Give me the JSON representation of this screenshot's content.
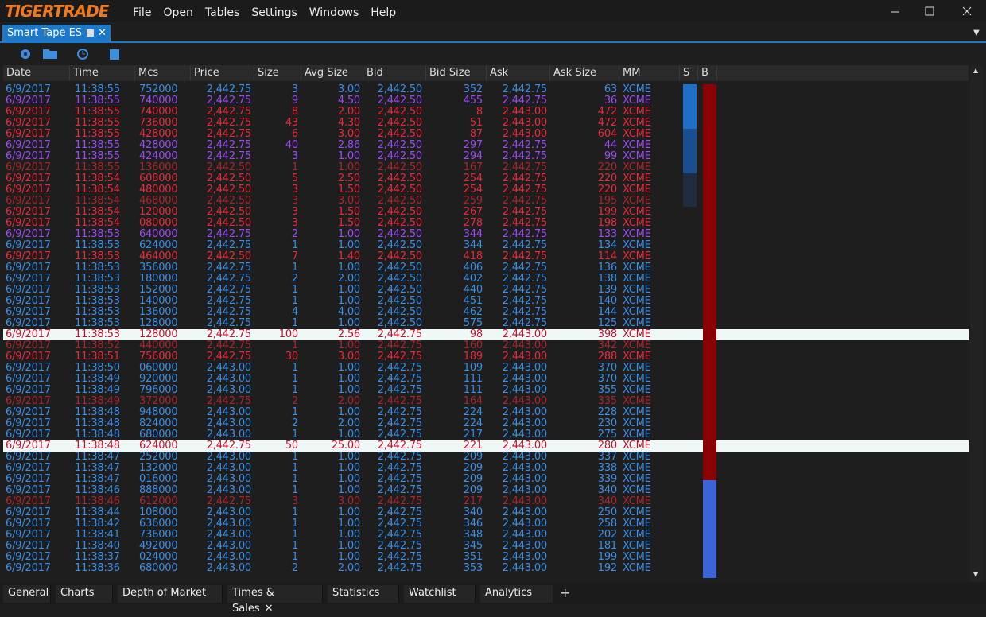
{
  "app": {
    "logo": "TIGERTRADE",
    "menu": [
      "File",
      "Open",
      "Tables",
      "Settings",
      "Windows",
      "Help"
    ],
    "tab": "Smart Tape ES"
  },
  "table": {
    "columns": [
      "Date",
      "Time",
      "Mcs",
      "Price",
      "Size",
      "Avg Size",
      "Bid",
      "Bid Size",
      "Ask",
      "Ask Size",
      "MM",
      "S",
      "B"
    ],
    "rows": [
      [
        "6/9/2017",
        "11:38:55",
        "752000",
        "2,442.75",
        "3",
        "3.00",
        "2,442.50",
        "352",
        "2,442.75",
        "63",
        "XCME"
      ],
      [
        "6/9/2017",
        "11:38:55",
        "740000",
        "2,442.75",
        "9",
        "4.50",
        "2,442.50",
        "455",
        "2,442.75",
        "36",
        "XCME"
      ],
      [
        "6/9/2017",
        "11:38:55",
        "740000",
        "2,442.75",
        "8",
        "2.00",
        "2,442.50",
        "8",
        "2,443.00",
        "472",
        "XCME"
      ],
      [
        "6/9/2017",
        "11:38:55",
        "736000",
        "2,442.75",
        "43",
        "4.30",
        "2,442.50",
        "51",
        "2,443.00",
        "472",
        "XCME"
      ],
      [
        "6/9/2017",
        "11:38:55",
        "428000",
        "2,442.75",
        "6",
        "3.00",
        "2,442.50",
        "87",
        "2,443.00",
        "604",
        "XCME"
      ],
      [
        "6/9/2017",
        "11:38:55",
        "428000",
        "2,442.75",
        "40",
        "2.86",
        "2,442.50",
        "297",
        "2,442.75",
        "44",
        "XCME"
      ],
      [
        "6/9/2017",
        "11:38:55",
        "424000",
        "2,442.75",
        "3",
        "1.00",
        "2,442.50",
        "294",
        "2,442.75",
        "99",
        "XCME"
      ],
      [
        "6/9/2017",
        "11:38:55",
        "136000",
        "2,442.50",
        "1",
        "1.00",
        "2,442.50",
        "167",
        "2,442.75",
        "220",
        "XCME"
      ],
      [
        "6/9/2017",
        "11:38:54",
        "608000",
        "2,442.50",
        "5",
        "2.50",
        "2,442.50",
        "254",
        "2,442.75",
        "220",
        "XCME"
      ],
      [
        "6/9/2017",
        "11:38:54",
        "480000",
        "2,442.50",
        "3",
        "1.50",
        "2,442.50",
        "254",
        "2,442.75",
        "220",
        "XCME"
      ],
      [
        "6/9/2017",
        "11:38:54",
        "468000",
        "2,442.50",
        "3",
        "3.00",
        "2,442.50",
        "259",
        "2,442.75",
        "195",
        "XCME"
      ],
      [
        "6/9/2017",
        "11:38:54",
        "120000",
        "2,442.50",
        "3",
        "1.50",
        "2,442.50",
        "267",
        "2,442.75",
        "199",
        "XCME"
      ],
      [
        "6/9/2017",
        "11:38:54",
        "080000",
        "2,442.50",
        "3",
        "1.50",
        "2,442.50",
        "278",
        "2,442.75",
        "198",
        "XCME"
      ],
      [
        "6/9/2017",
        "11:38:53",
        "640000",
        "2,442.75",
        "2",
        "1.00",
        "2,442.50",
        "344",
        "2,442.75",
        "133",
        "XCME"
      ],
      [
        "6/9/2017",
        "11:38:53",
        "624000",
        "2,442.75",
        "1",
        "1.00",
        "2,442.50",
        "344",
        "2,442.75",
        "134",
        "XCME"
      ],
      [
        "6/9/2017",
        "11:38:53",
        "464000",
        "2,442.50",
        "7",
        "1.40",
        "2,442.50",
        "418",
        "2,442.75",
        "114",
        "XCME"
      ],
      [
        "6/9/2017",
        "11:38:53",
        "356000",
        "2,442.75",
        "1",
        "1.00",
        "2,442.50",
        "406",
        "2,442.75",
        "136",
        "XCME"
      ],
      [
        "6/9/2017",
        "11:38:53",
        "180000",
        "2,442.75",
        "2",
        "2.00",
        "2,442.50",
        "402",
        "2,442.75",
        "138",
        "XCME"
      ],
      [
        "6/9/2017",
        "11:38:53",
        "152000",
        "2,442.75",
        "1",
        "1.00",
        "2,442.50",
        "440",
        "2,442.75",
        "139",
        "XCME"
      ],
      [
        "6/9/2017",
        "11:38:53",
        "140000",
        "2,442.75",
        "1",
        "1.00",
        "2,442.50",
        "451",
        "2,442.75",
        "140",
        "XCME"
      ],
      [
        "6/9/2017",
        "11:38:53",
        "136000",
        "2,442.75",
        "4",
        "4.00",
        "2,442.50",
        "462",
        "2,442.75",
        "144",
        "XCME"
      ],
      [
        "6/9/2017",
        "11:38:53",
        "128000",
        "2,442.75",
        "1",
        "1.00",
        "2,442.50",
        "575",
        "2,442.75",
        "125",
        "XCME"
      ],
      [
        "6/9/2017",
        "11:38:53",
        "128000",
        "2,442.75",
        "100",
        "2.56",
        "2,442.75",
        "98",
        "2,443.00",
        "398",
        "XCME"
      ],
      [
        "6/9/2017",
        "11:38:52",
        "440000",
        "2,442.75",
        "1",
        "1.00",
        "2,442.75",
        "160",
        "2,443.00",
        "342",
        "XCME"
      ],
      [
        "6/9/2017",
        "11:38:51",
        "756000",
        "2,442.75",
        "30",
        "3.00",
        "2,442.75",
        "189",
        "2,443.00",
        "288",
        "XCME"
      ],
      [
        "6/9/2017",
        "11:38:50",
        "060000",
        "2,443.00",
        "1",
        "1.00",
        "2,442.75",
        "109",
        "2,443.00",
        "370",
        "XCME"
      ],
      [
        "6/9/2017",
        "11:38:49",
        "920000",
        "2,443.00",
        "1",
        "1.00",
        "2,442.75",
        "111",
        "2,443.00",
        "370",
        "XCME"
      ],
      [
        "6/9/2017",
        "11:38:49",
        "796000",
        "2,443.00",
        "1",
        "1.00",
        "2,442.75",
        "111",
        "2,443.00",
        "355",
        "XCME"
      ],
      [
        "6/9/2017",
        "11:38:49",
        "372000",
        "2,442.75",
        "2",
        "2.00",
        "2,442.75",
        "164",
        "2,443.00",
        "335",
        "XCME"
      ],
      [
        "6/9/2017",
        "11:38:48",
        "948000",
        "2,443.00",
        "1",
        "1.00",
        "2,442.75",
        "224",
        "2,443.00",
        "228",
        "XCME"
      ],
      [
        "6/9/2017",
        "11:38:48",
        "824000",
        "2,443.00",
        "2",
        "2.00",
        "2,442.75",
        "224",
        "2,443.00",
        "230",
        "XCME"
      ],
      [
        "6/9/2017",
        "11:38:48",
        "680000",
        "2,443.00",
        "1",
        "1.00",
        "2,442.75",
        "217",
        "2,443.00",
        "275",
        "XCME"
      ],
      [
        "6/9/2017",
        "11:38:48",
        "624000",
        "2,442.75",
        "50",
        "25.00",
        "2,442.75",
        "221",
        "2,443.00",
        "280",
        "XCME"
      ],
      [
        "6/9/2017",
        "11:38:47",
        "252000",
        "2,443.00",
        "1",
        "1.00",
        "2,442.75",
        "209",
        "2,443.00",
        "337",
        "XCME"
      ],
      [
        "6/9/2017",
        "11:38:47",
        "132000",
        "2,443.00",
        "1",
        "1.00",
        "2,442.75",
        "209",
        "2,443.00",
        "338",
        "XCME"
      ],
      [
        "6/9/2017",
        "11:38:47",
        "016000",
        "2,443.00",
        "1",
        "1.00",
        "2,442.75",
        "209",
        "2,443.00",
        "339",
        "XCME"
      ],
      [
        "6/9/2017",
        "11:38:46",
        "888000",
        "2,443.00",
        "1",
        "1.00",
        "2,442.75",
        "209",
        "2,443.00",
        "340",
        "XCME"
      ],
      [
        "6/9/2017",
        "11:38:46",
        "612000",
        "2,442.75",
        "3",
        "3.00",
        "2,442.75",
        "217",
        "2,443.00",
        "340",
        "XCME"
      ],
      [
        "6/9/2017",
        "11:38:44",
        "108000",
        "2,443.00",
        "1",
        "1.00",
        "2,442.75",
        "340",
        "2,443.00",
        "250",
        "XCME"
      ],
      [
        "6/9/2017",
        "11:38:42",
        "636000",
        "2,443.00",
        "1",
        "1.00",
        "2,442.75",
        "346",
        "2,443.00",
        "258",
        "XCME"
      ],
      [
        "6/9/2017",
        "11:38:41",
        "736000",
        "2,443.00",
        "1",
        "1.00",
        "2,442.75",
        "348",
        "2,443.00",
        "202",
        "XCME"
      ],
      [
        "6/9/2017",
        "11:38:40",
        "492000",
        "2,443.00",
        "1",
        "1.00",
        "2,442.75",
        "345",
        "2,443.00",
        "181",
        "XCME"
      ],
      [
        "6/9/2017",
        "11:38:37",
        "024000",
        "2,443.00",
        "1",
        "1.00",
        "2,442.75",
        "351",
        "2,443.00",
        "199",
        "XCME"
      ],
      [
        "6/9/2017",
        "11:38:36",
        "680000",
        "2,443.00",
        "2",
        "2.00",
        "2,442.75",
        "353",
        "2,443.00",
        "192",
        "XCME"
      ]
    ],
    "row_colors": [
      "#3a8fe8",
      "#9a4cf2",
      "#e82a3c",
      "#e82a3c",
      "#e82a3c",
      "#9a4cf2",
      "#9a4cf2",
      "#a8262e",
      "#e82a3c",
      "#e82a3c",
      "#a8262e",
      "#e82a3c",
      "#e82a3c",
      "#9a4cf2",
      "#3a8fe8",
      "#e82a3c",
      "#3a8fe8",
      "#3a8fe8",
      "#3a8fe8",
      "#3a8fe8",
      "#3a8fe8",
      "#3a8fe8",
      "#c8102e",
      "#a8262e",
      "#e82a3c",
      "#3a8fe8",
      "#3a8fe8",
      "#3a8fe8",
      "#a8262e",
      "#3a8fe8",
      "#3a8fe8",
      "#3a8fe8",
      "#c8102e",
      "#3a8fe8",
      "#3a8fe8",
      "#3a8fe8",
      "#3a8fe8",
      "#a8262e",
      "#3a8fe8",
      "#3a8fe8",
      "#3a8fe8",
      "#3a8fe8",
      "#3a8fe8",
      "#3a8fe8"
    ],
    "highlighted_rows": [
      22,
      32
    ]
  },
  "bottom_tabs": [
    "General",
    "Charts",
    "Depth of Market",
    "Times & Sales",
    "Statistics",
    "Watchlist",
    "Analytics"
  ]
}
